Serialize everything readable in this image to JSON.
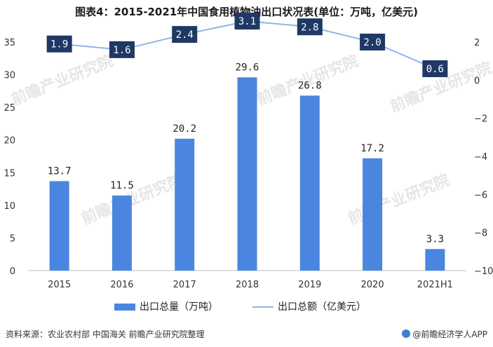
{
  "title": "图表4：2015-2021年中国食用植物油出口状况表(单位：万吨，亿美元)",
  "source_note": "资料来源：农业农村部 中国海关 前瞻产业研究院整理",
  "credit": "@前瞻经济学人APP",
  "watermark": "前瞻产业研究院",
  "colors": {
    "bar": "#4a86e0",
    "line": "#8fb6ea",
    "label_box": "#1f3864"
  },
  "chart_data": {
    "type": "bar",
    "title": "图表4：2015-2021年中国食用植物油出口状况表(单位：万吨，亿美元)",
    "categories": [
      "2015",
      "2016",
      "2017",
      "2018",
      "2019",
      "2020",
      "2021H1"
    ],
    "series": [
      {
        "name": "出口总量（万吨）",
        "type": "bar",
        "axis": "left",
        "values": [
          13.7,
          11.5,
          20.2,
          29.6,
          26.8,
          17.2,
          3.3
        ],
        "labels": [
          "13.7",
          "11.5",
          "20.2",
          "29.6",
          "26.8",
          "17.2",
          "3.3"
        ]
      },
      {
        "name": "出口总额（亿美元）",
        "type": "line",
        "axis": "right",
        "values": [
          1.9,
          1.6,
          2.4,
          3.1,
          2.8,
          2.0,
          0.6
        ],
        "labels": [
          "1.9",
          "1.6",
          "2.4",
          "3.1",
          "2.8",
          "2.0",
          "0.6"
        ]
      }
    ],
    "y_left": {
      "min": 0,
      "max": 35,
      "ticks": [
        "0",
        "5",
        "10",
        "15",
        "20",
        "25",
        "30",
        "35"
      ]
    },
    "y_right": {
      "min": -10,
      "max": 2,
      "ticks": [
        "−10",
        "−8",
        "−6",
        "−4",
        "−2",
        "0",
        "2"
      ]
    },
    "grid": false,
    "legend_position": "bottom"
  }
}
